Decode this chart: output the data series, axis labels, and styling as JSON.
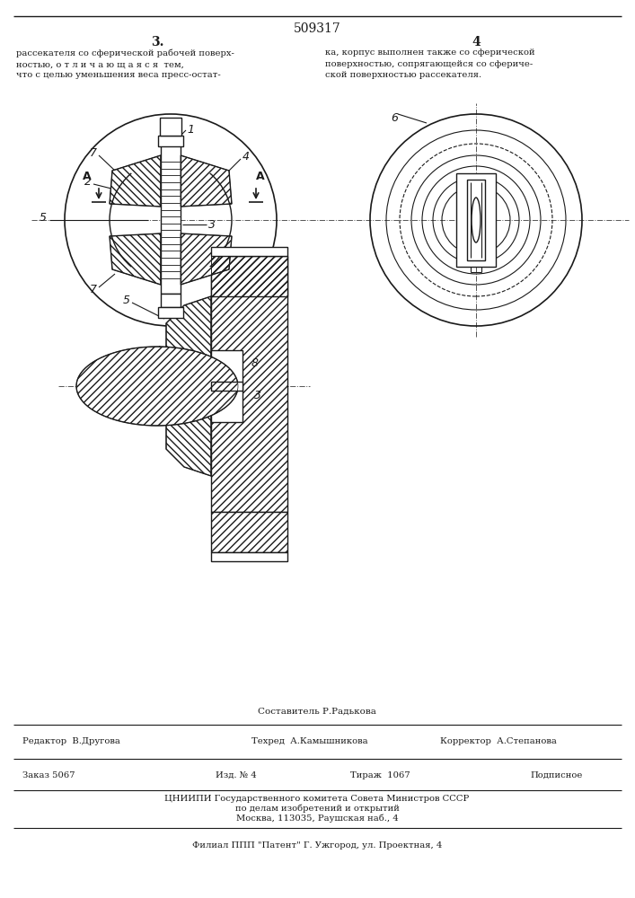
{
  "patent_number": "509317",
  "page_left": "3.",
  "page_right": "4",
  "text_left": "рассекателя со сферической рабочей поверх-\nностью, о т л и ч а ю щ а я с я  тем,\nчто с целью уменьшения веса пресс-остат-",
  "text_right": "ка, корпус выполнен также со сферической\nповерхностью, сопрягающейся со сфериче-\nской поверхностью рассекателя.",
  "section_label": "А - А",
  "composer": "Составитель Р.Радькова",
  "editor": "Редактор  В.Другова",
  "techred": "Техред  А.Камышникова",
  "corrector": "Корректор  А.Степанова",
  "order": "Заказ 5067",
  "edition": "Изд. № 4",
  "circulation": "Тираж  1067",
  "subscription": "Подписное",
  "org_line1": "ЦНИИПИ Государственного комитета Совета Министров СССР",
  "org_line2": "по делам изобретений и открытий",
  "org_line3": "Москва, 113035, Раушская наб., 4",
  "branch": "Филиал ППП \"Патент\" Г. Ужгород, ул. Проектная, 4",
  "bg_color": "#ffffff",
  "line_color": "#1a1a1a",
  "text_color": "#1a1a1a"
}
